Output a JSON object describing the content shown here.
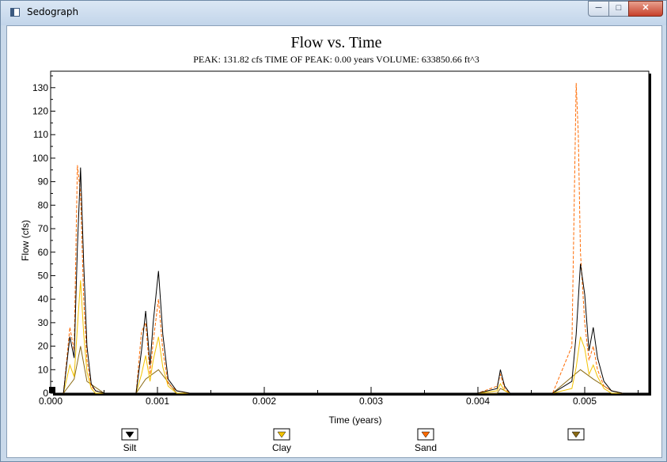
{
  "window": {
    "title": "Sedograph",
    "icon": "app-window-icon",
    "buttons": [
      "minimize-icon",
      "maximize-icon",
      "close-icon"
    ]
  },
  "chart_data": {
    "type": "line",
    "title": "Flow vs. Time",
    "subtitle": "PEAK: 131.82 cfs  TIME OF PEAK: 0.00 years  VOLUME: 633850.66 ft^3",
    "xlabel": "Time (years)",
    "ylabel": "Flow (cfs)",
    "xlim": [
      0,
      0.0056
    ],
    "ylim": [
      0,
      137
    ],
    "x_ticks": [
      "0.000",
      "0.001",
      "0.002",
      "0.003",
      "0.004",
      "0.005"
    ],
    "y_ticks": [
      "0",
      "10",
      "20",
      "30",
      "40",
      "50",
      "60",
      "70",
      "80",
      "90",
      "100",
      "110",
      "120",
      "130"
    ],
    "grid": false,
    "legend": "bottom",
    "series": [
      {
        "name": "Silt",
        "color": "#000000",
        "dash": "solid",
        "x": [
          0.00012,
          0.00018,
          0.00022,
          0.00025,
          0.00028,
          0.00031,
          0.00034,
          0.00038,
          0.00042,
          0.0005,
          0.0008,
          0.00085,
          0.00089,
          0.00093,
          0.00096,
          0.00101,
          0.00105,
          0.0011,
          0.00118,
          0.0013,
          0.0018,
          0.004,
          0.00418,
          0.00421,
          0.00425,
          0.0043,
          0.0047,
          0.00488,
          0.00492,
          0.00496,
          0.005,
          0.00504,
          0.00508,
          0.00512,
          0.00518,
          0.00525,
          0.00535
        ],
        "y": [
          0,
          24,
          15,
          62,
          96,
          55,
          20,
          4,
          1,
          0,
          0,
          18,
          35,
          12,
          30,
          52,
          25,
          6,
          1,
          0,
          0,
          0,
          2,
          10,
          3,
          0,
          0,
          5,
          25,
          55,
          42,
          18,
          28,
          15,
          5,
          1,
          0
        ]
      },
      {
        "name": "Clay",
        "color": "#f2c200",
        "dash": "solid",
        "x": [
          0.00012,
          0.00018,
          0.00022,
          0.00025,
          0.00028,
          0.00031,
          0.00034,
          0.00038,
          0.00042,
          0.0005,
          0.0008,
          0.00085,
          0.00089,
          0.00093,
          0.00096,
          0.00101,
          0.00105,
          0.0011,
          0.00118,
          0.0013,
          0.0018,
          0.004,
          0.00418,
          0.00421,
          0.00425,
          0.0043,
          0.0047,
          0.00488,
          0.00492,
          0.00496,
          0.005,
          0.00504,
          0.00508,
          0.00512,
          0.00518,
          0.00525,
          0.00535
        ],
        "y": [
          0,
          12,
          7,
          28,
          48,
          25,
          9,
          2,
          0,
          0,
          0,
          8,
          16,
          5,
          14,
          24,
          11,
          3,
          0,
          0,
          0,
          0,
          1,
          4,
          1,
          0,
          0,
          2,
          11,
          24,
          19,
          8,
          12,
          7,
          2,
          0,
          0
        ]
      },
      {
        "name": "Sand",
        "color": "#ff6a00",
        "dash": "dashed",
        "x": [
          0.00012,
          0.00018,
          0.00022,
          0.00025,
          0.00028,
          0.00031,
          0.00034,
          0.00038,
          0.00042,
          0.0005,
          0.0008,
          0.00085,
          0.00089,
          0.00093,
          0.00096,
          0.00101,
          0.00105,
          0.0011,
          0.00118,
          0.0013,
          0.0018,
          0.004,
          0.00418,
          0.00421,
          0.00425,
          0.0043,
          0.0047,
          0.00488,
          0.00492,
          0.00494,
          0.00496,
          0.005,
          0.00504,
          0.00508,
          0.00512,
          0.00518,
          0.00525,
          0.00535
        ],
        "y": [
          0,
          28,
          18,
          97,
          85,
          40,
          14,
          3,
          1,
          0,
          0,
          26,
          30,
          8,
          22,
          40,
          18,
          4,
          1,
          0,
          0,
          0,
          3,
          8,
          2,
          0,
          0,
          20,
          132,
          110,
          60,
          30,
          14,
          20,
          10,
          3,
          1,
          0
        ]
      },
      {
        "name": "",
        "color": "#8a6a14",
        "dash": "solid",
        "x": [
          0.00012,
          0.00022,
          0.00028,
          0.00034,
          0.0005,
          0.0008,
          0.00089,
          0.00101,
          0.00118,
          0.0018,
          0.00418,
          0.00421,
          0.0043,
          0.0047,
          0.00496,
          0.00508,
          0.00525,
          0.00535
        ],
        "y": [
          0,
          6,
          20,
          5,
          0,
          0,
          6,
          10,
          0,
          0,
          0,
          2,
          0,
          0,
          10,
          6,
          1,
          0
        ]
      }
    ]
  }
}
